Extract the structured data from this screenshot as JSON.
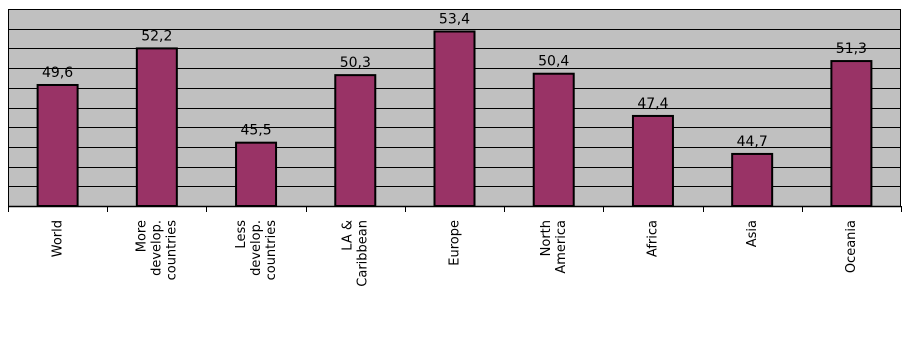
{
  "chart_data": {
    "type": "bar",
    "title": "",
    "xlabel": "",
    "ylabel": "",
    "categories": [
      [
        "World"
      ],
      [
        "More",
        "develop.",
        "countries"
      ],
      [
        "Less",
        "develop.",
        "countries"
      ],
      [
        "LA &",
        "Caribbean"
      ],
      [
        "Europe"
      ],
      [
        "North",
        "America"
      ],
      [
        "Africa"
      ],
      [
        "Asia"
      ],
      [
        "Oceania"
      ]
    ],
    "values": [
      49.6,
      52.2,
      45.5,
      50.3,
      53.4,
      50.4,
      47.4,
      44.7,
      51.3
    ],
    "value_labels": [
      "49,6",
      "52,2",
      "45,5",
      "50,3",
      "53,4",
      "50,4",
      "47,4",
      "44,7",
      "51,3"
    ],
    "ylim": [
      41,
      55
    ],
    "gridline_step": 1.4,
    "grid": true,
    "legend": "none",
    "colors": {
      "bar_fill": "#993366",
      "bar_stroke": "#000000",
      "plot_background": "#c0c0c0",
      "gridline": "#000000",
      "axis": "#000000",
      "page_background": "#ffffff"
    }
  }
}
